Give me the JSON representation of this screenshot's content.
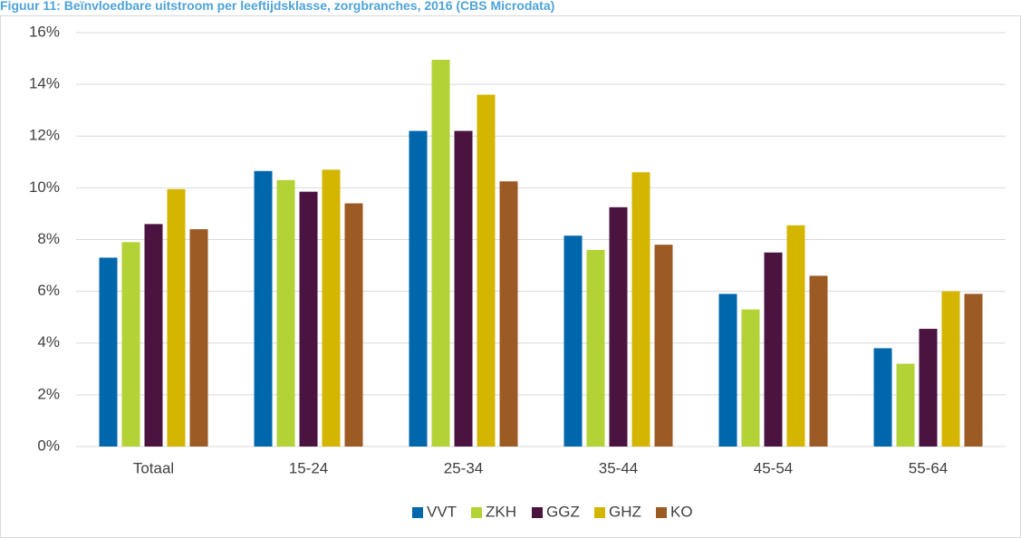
{
  "chart_data": {
    "type": "bar",
    "title": "Figuur 11: Beïnvloedbare uitstroom per leeftijdsklasse, zorgbranches, 2016 (CBS Microdata)",
    "categories": [
      "Totaal",
      "15-24",
      "25-34",
      "35-44",
      "45-54",
      "55-64"
    ],
    "series": [
      {
        "name": "VVT",
        "color": "#0067ac",
        "values": [
          7.3,
          10.65,
          12.2,
          8.15,
          5.9,
          3.8
        ]
      },
      {
        "name": "ZKH",
        "color": "#b2d235",
        "values": [
          7.9,
          10.3,
          14.95,
          7.6,
          5.3,
          3.2
        ]
      },
      {
        "name": "GGZ",
        "color": "#4a1340",
        "values": [
          8.6,
          9.85,
          12.2,
          9.25,
          7.5,
          4.55
        ]
      },
      {
        "name": "GHZ",
        "color": "#d4b500",
        "values": [
          9.95,
          10.7,
          13.6,
          10.6,
          8.55,
          6.0
        ]
      },
      {
        "name": "KO",
        "color": "#9c5a24",
        "values": [
          8.4,
          9.4,
          10.25,
          7.8,
          6.6,
          5.9
        ]
      }
    ],
    "ylim": [
      0,
      16
    ],
    "yticks": [
      {
        "value": 0,
        "label": "0%"
      },
      {
        "value": 2,
        "label": "2%"
      },
      {
        "value": 4,
        "label": "4%"
      },
      {
        "value": 6,
        "label": "6%"
      },
      {
        "value": 8,
        "label": "8%"
      },
      {
        "value": 10,
        "label": "10%"
      },
      {
        "value": 12,
        "label": "12%"
      },
      {
        "value": 14,
        "label": "14%"
      },
      {
        "value": 16,
        "label": "16%"
      }
    ],
    "grid": true,
    "legend": "bottom"
  }
}
